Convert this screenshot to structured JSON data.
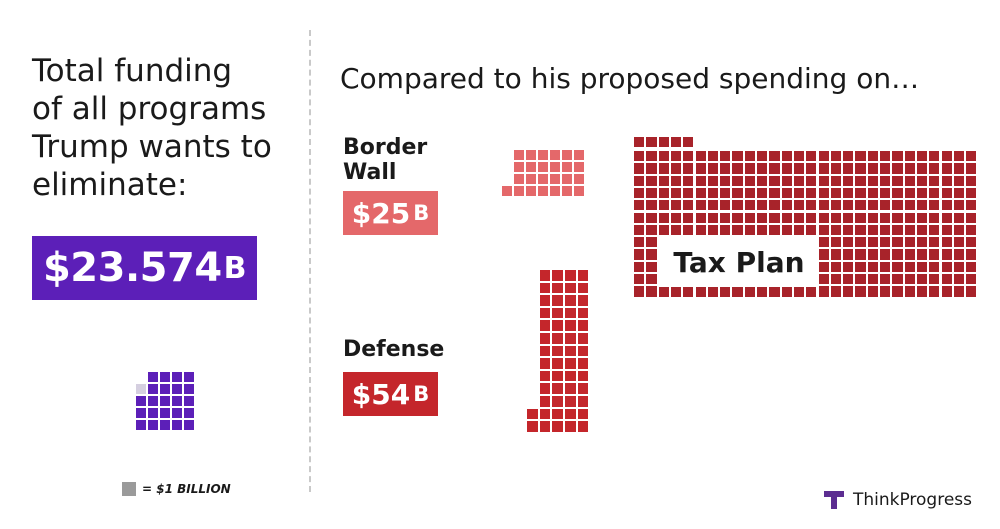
{
  "left": {
    "heading_lines": [
      "Total funding",
      "of all programs",
      "Trump wants to",
      "eliminate:"
    ],
    "total": {
      "amount": "$23.574",
      "unit": "B"
    },
    "legend_text": "= $1 BILLION"
  },
  "right": {
    "subtitle": "Compared to his proposed spending on…",
    "border_wall": {
      "label_line1": "Border",
      "label_line2": "Wall",
      "amount": "$25",
      "unit": "B"
    },
    "defense": {
      "label": "Defense",
      "amount": "$54",
      "unit": "B"
    },
    "tax_plan": {
      "label": "Tax Plan",
      "amount": "$341",
      "unit": "B"
    }
  },
  "brand": {
    "name": "ThinkProgress"
  },
  "colors": {
    "eliminate": "#5c1fb8",
    "eliminate_partial": "#d5cfe0",
    "border_wall": "#e4686a",
    "defense": "#c4262b",
    "tax_plan": "#a8232a",
    "legend_unit": "#9a9a9a"
  },
  "chart_data": {
    "type": "waffle",
    "unit": "$1 billion per square",
    "categories": [
      "Programs Trump wants to eliminate",
      "Border Wall",
      "Defense",
      "Tax Plan"
    ],
    "values": [
      23.574,
      25,
      54,
      341
    ]
  }
}
